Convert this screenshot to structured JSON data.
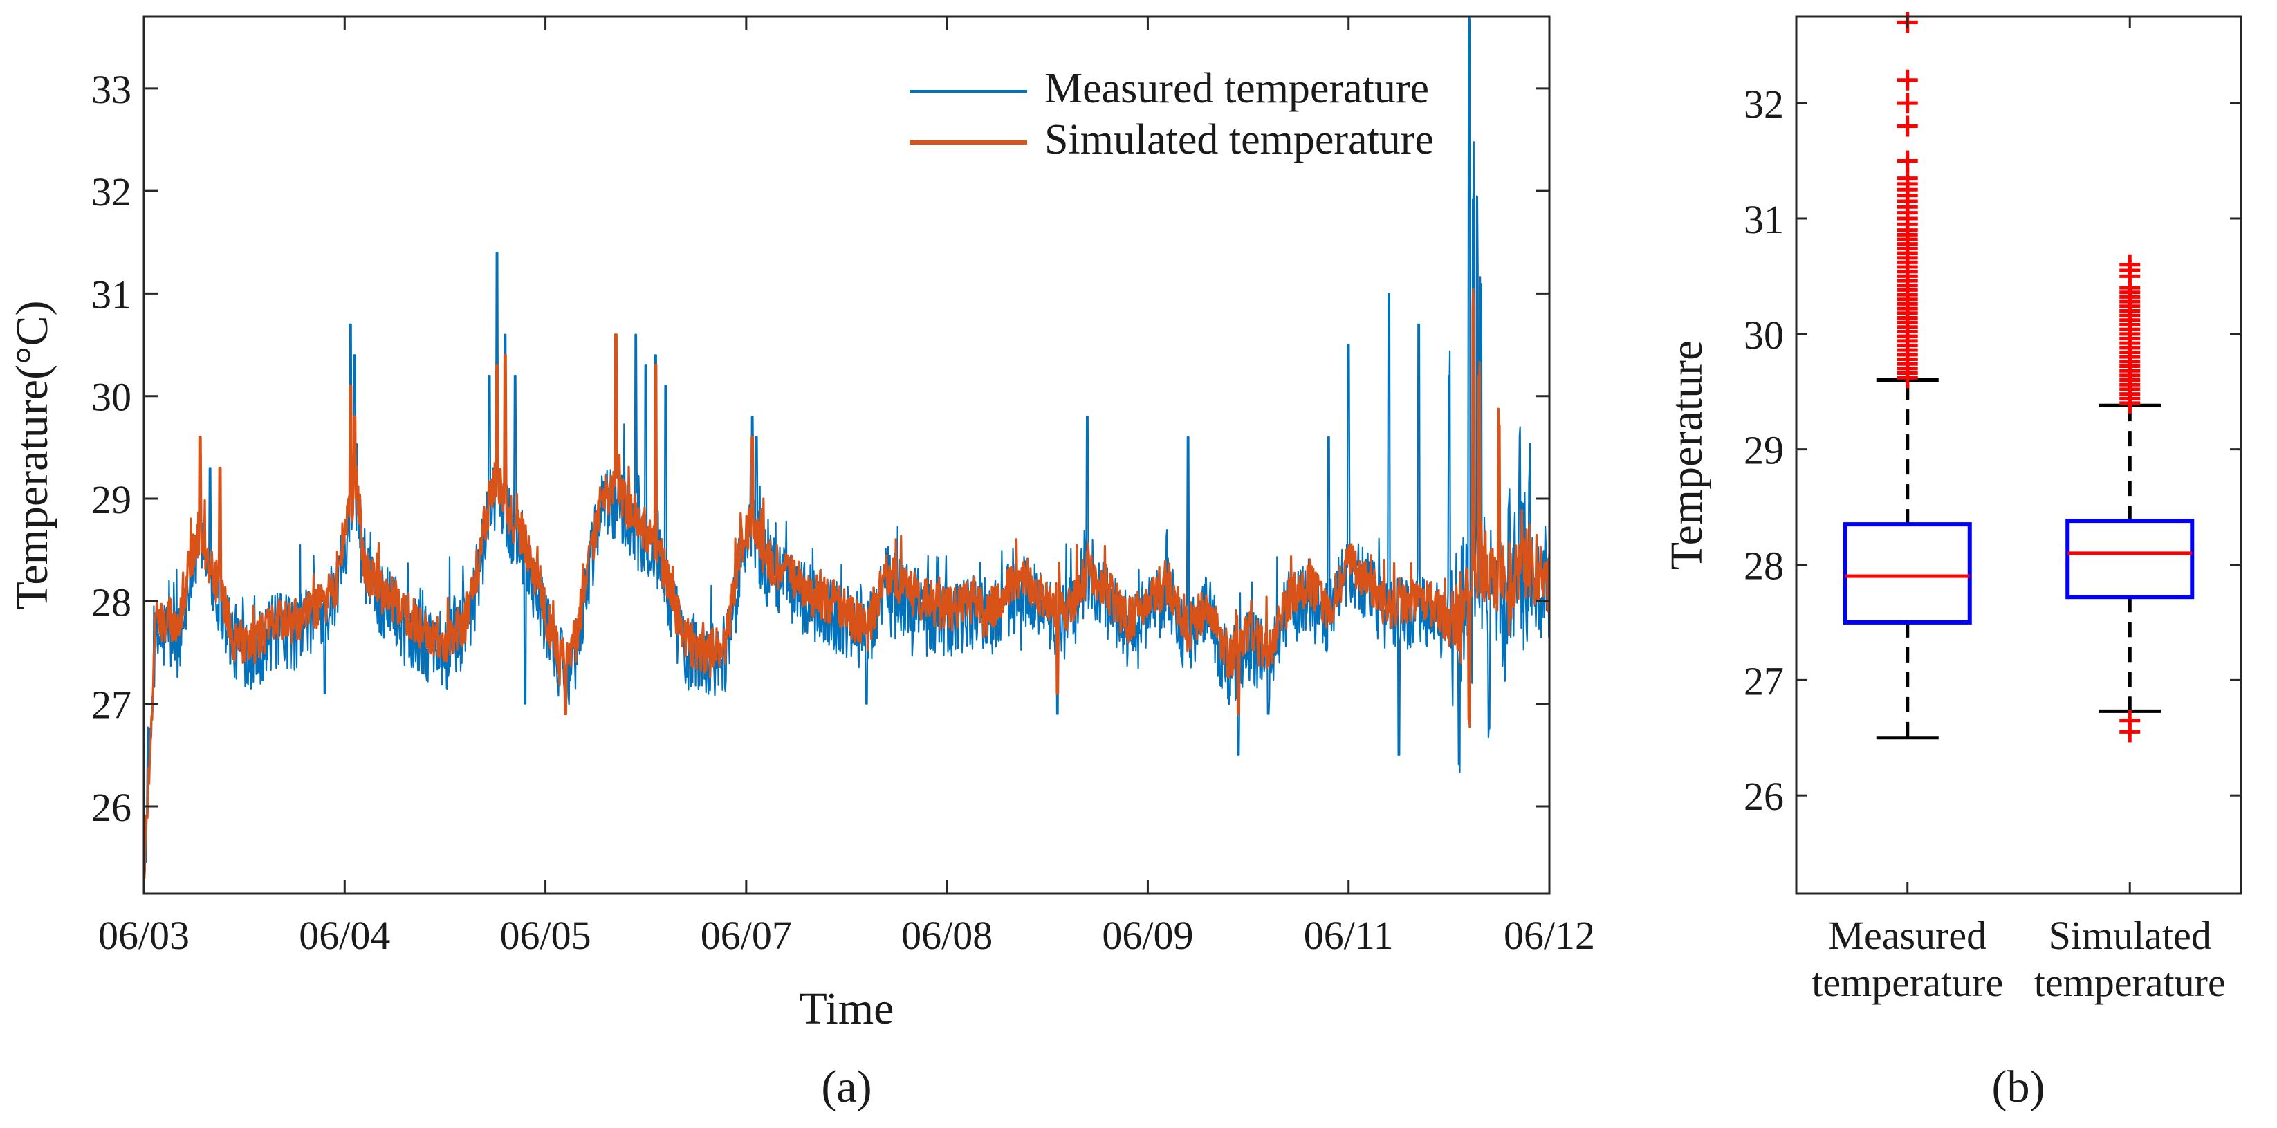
{
  "chart_data": [
    {
      "type": "line",
      "panel_label": "(a)",
      "xlabel": "Time",
      "ylabel": "Temperature(°C)",
      "x_tick_labels": [
        "06/03",
        "06/04",
        "06/05",
        "06/07",
        "06/08",
        "06/09",
        "06/11",
        "06/12"
      ],
      "xlim": [
        0,
        7
      ],
      "ylim": [
        25.15,
        33.7
      ],
      "y_ticks": [
        26,
        27,
        28,
        29,
        30,
        31,
        32,
        33
      ],
      "y_tick_labels": [
        "26",
        "27",
        "28",
        "29",
        "30",
        "31",
        "32",
        "33"
      ],
      "legend_position": "top-right",
      "series": [
        {
          "name": "Measured temperature",
          "color": "#0072BD",
          "anchor_x": [
            0.0,
            0.06,
            0.12,
            0.18,
            0.24,
            0.28,
            0.32,
            0.38,
            0.45,
            0.55,
            0.65,
            0.75,
            0.85,
            0.95,
            1.02,
            1.06,
            1.1,
            1.2,
            1.3,
            1.4,
            1.5,
            1.6,
            1.65,
            1.72,
            1.76,
            1.8,
            1.9,
            2.0,
            2.06,
            2.1,
            2.15,
            2.22,
            2.28,
            2.35,
            2.45,
            2.55,
            2.62,
            2.7,
            2.8,
            2.9,
            2.98,
            3.03,
            3.1,
            3.2,
            3.3,
            3.4,
            3.5,
            3.6,
            3.7,
            3.8,
            3.9,
            4.0,
            4.1,
            4.2,
            4.3,
            4.4,
            4.5,
            4.6,
            4.7,
            4.8,
            4.9,
            5.0,
            5.1,
            5.2,
            5.3,
            5.4,
            5.5,
            5.6,
            5.7,
            5.8,
            5.9,
            6.0,
            6.1,
            6.2,
            6.3,
            6.4,
            6.5,
            6.6,
            6.7,
            6.8,
            6.86,
            6.92,
            7.0
          ],
          "anchor_y": [
            25.3,
            27.6,
            27.7,
            27.6,
            28.4,
            28.6,
            28.3,
            28.0,
            27.6,
            27.5,
            27.7,
            27.7,
            27.8,
            28.0,
            28.8,
            29.0,
            28.2,
            28.0,
            27.8,
            27.6,
            27.5,
            27.7,
            28.1,
            28.9,
            29.1,
            28.8,
            28.5,
            27.8,
            27.4,
            27.3,
            27.5,
            28.3,
            28.9,
            29.0,
            28.7,
            28.5,
            28.0,
            27.5,
            27.4,
            27.5,
            28.5,
            28.7,
            28.3,
            28.2,
            28.0,
            27.9,
            27.8,
            27.6,
            28.2,
            28.0,
            27.9,
            27.8,
            27.9,
            27.8,
            28.0,
            28.1,
            27.9,
            27.8,
            28.2,
            28.0,
            27.7,
            27.9,
            28.1,
            27.6,
            27.9,
            27.3,
            27.6,
            27.4,
            27.9,
            28.1,
            27.8,
            28.3,
            28.1,
            27.8,
            27.9,
            27.9,
            27.7,
            28.0,
            28.2,
            28.0,
            28.4,
            28.1,
            28.2
          ],
          "peak_x": [
            0.28,
            0.33,
            0.38,
            1.03,
            1.05,
            1.72,
            1.76,
            1.8,
            1.85,
            2.45,
            2.5,
            2.55,
            2.6,
            3.03,
            3.05,
            4.7,
            5.2,
            5.9,
            6.0,
            6.2,
            6.35,
            6.5,
            6.55,
            6.6,
            6.62,
            6.64,
            6.66,
            6.7,
            6.75,
            6.8,
            6.85,
            6.9
          ],
          "peak_y": [
            29.6,
            29.3,
            29.2,
            30.7,
            30.4,
            30.2,
            31.4,
            30.6,
            30.2,
            30.6,
            30.3,
            30.4,
            30.1,
            29.8,
            29.6,
            29.8,
            29.6,
            29.6,
            30.5,
            31.0,
            30.7,
            30.2,
            31.7,
            33.7,
            32.2,
            31.7,
            30.9,
            30.4,
            29.6,
            28.9,
            29.5,
            29.3
          ],
          "dip_x": [
            0.9,
            1.9,
            2.1,
            3.6,
            4.55,
            5.45,
            5.6,
            6.25,
            6.55,
            6.7
          ],
          "dip_y": [
            27.1,
            27.0,
            26.9,
            27.0,
            26.9,
            26.5,
            26.9,
            26.5,
            26.6,
            27.1
          ]
        },
        {
          "name": "Simulated temperature",
          "color": "#D95319",
          "anchor_x": [
            0.0,
            0.06,
            0.12,
            0.18,
            0.24,
            0.28,
            0.32,
            0.38,
            0.45,
            0.55,
            0.65,
            0.75,
            0.85,
            0.95,
            1.02,
            1.06,
            1.1,
            1.2,
            1.3,
            1.4,
            1.5,
            1.6,
            1.65,
            1.72,
            1.76,
            1.8,
            1.9,
            2.0,
            2.06,
            2.1,
            2.15,
            2.22,
            2.28,
            2.35,
            2.45,
            2.55,
            2.62,
            2.7,
            2.8,
            2.9,
            2.98,
            3.03,
            3.1,
            3.2,
            3.3,
            3.4,
            3.5,
            3.6,
            3.7,
            3.8,
            3.9,
            4.0,
            4.1,
            4.2,
            4.3,
            4.4,
            4.5,
            4.6,
            4.7,
            4.8,
            4.9,
            5.0,
            5.1,
            5.2,
            5.3,
            5.4,
            5.5,
            5.6,
            5.7,
            5.8,
            5.9,
            6.0,
            6.1,
            6.2,
            6.3,
            6.4,
            6.5,
            6.6,
            6.7,
            6.8,
            6.86,
            6.92,
            7.0
          ],
          "anchor_y": [
            25.3,
            27.8,
            27.8,
            27.8,
            28.5,
            28.7,
            28.4,
            28.1,
            27.6,
            27.6,
            27.8,
            27.8,
            27.9,
            28.1,
            28.9,
            29.1,
            28.3,
            28.1,
            27.9,
            27.7,
            27.6,
            27.8,
            28.2,
            29.0,
            29.2,
            28.9,
            28.6,
            27.9,
            27.5,
            27.4,
            27.6,
            28.4,
            29.0,
            29.1,
            28.8,
            28.6,
            28.1,
            27.6,
            27.5,
            27.6,
            28.6,
            28.8,
            28.4,
            28.3,
            28.1,
            28.0,
            27.9,
            27.7,
            28.3,
            28.1,
            28.0,
            27.9,
            28.0,
            27.9,
            28.1,
            28.2,
            28.0,
            27.9,
            28.3,
            28.1,
            27.8,
            28.0,
            28.2,
            27.7,
            28.0,
            27.4,
            27.7,
            27.5,
            28.0,
            28.2,
            27.9,
            28.4,
            28.2,
            27.9,
            28.0,
            28.0,
            27.8,
            28.1,
            28.3,
            28.1,
            28.5,
            28.2,
            28.3
          ],
          "peak_x": [
            0.28,
            0.38,
            1.03,
            1.05,
            1.76,
            1.8,
            2.35,
            2.55,
            3.03,
            6.62,
            6.65,
            6.75
          ],
          "peak_y": [
            29.6,
            29.3,
            30.1,
            29.8,
            30.3,
            30.4,
            30.6,
            30.3,
            29.6,
            30.8,
            30.2,
            29.8
          ],
          "dip_x": [
            2.1,
            4.55,
            5.45,
            6.6
          ],
          "dip_y": [
            26.9,
            27.1,
            26.9,
            27.0
          ]
        }
      ]
    },
    {
      "type": "box",
      "panel_label": "(b)",
      "ylabel": "Temperature",
      "ylim": [
        25.15,
        32.75
      ],
      "y_ticks": [
        26,
        27,
        28,
        29,
        30,
        31,
        32
      ],
      "y_tick_labels": [
        "26",
        "27",
        "28",
        "29",
        "30",
        "31",
        "32"
      ],
      "category_lines": [
        [
          "Measured",
          "temperature"
        ],
        [
          "Simulated",
          "temperature"
        ]
      ],
      "box_color": "#0000FF",
      "median_color": "#FF0000",
      "outlier_color": "#FF0000",
      "whisker_color": "#000000",
      "boxes": [
        {
          "name": "Measured temperature",
          "q1": 27.5,
          "median": 27.9,
          "q3": 28.35,
          "whisker_low": 26.5,
          "whisker_high": 29.6,
          "outliers": [
            29.62,
            29.66,
            29.7,
            29.74,
            29.78,
            29.82,
            29.86,
            29.9,
            29.94,
            29.98,
            30.02,
            30.06,
            30.1,
            30.14,
            30.18,
            30.22,
            30.26,
            30.3,
            30.34,
            30.38,
            30.42,
            30.46,
            30.5,
            30.54,
            30.58,
            30.62,
            30.66,
            30.7,
            30.74,
            30.78,
            30.82,
            30.86,
            30.9,
            30.95,
            31.0,
            31.05,
            31.1,
            31.15,
            31.2,
            31.25,
            31.3,
            31.35,
            31.5,
            31.8,
            32.0,
            32.2,
            32.7
          ]
        },
        {
          "name": "Simulated temperature",
          "q1": 27.72,
          "median": 28.1,
          "q3": 28.38,
          "whisker_low": 26.73,
          "whisker_high": 29.38,
          "outliers": [
            26.55,
            26.65,
            29.4,
            29.44,
            29.48,
            29.52,
            29.56,
            29.6,
            29.64,
            29.68,
            29.72,
            29.76,
            29.8,
            29.84,
            29.88,
            29.92,
            29.96,
            30.0,
            30.04,
            30.08,
            30.12,
            30.16,
            30.2,
            30.24,
            30.28,
            30.32,
            30.36,
            30.4,
            30.5,
            30.55,
            30.6
          ]
        }
      ]
    }
  ]
}
